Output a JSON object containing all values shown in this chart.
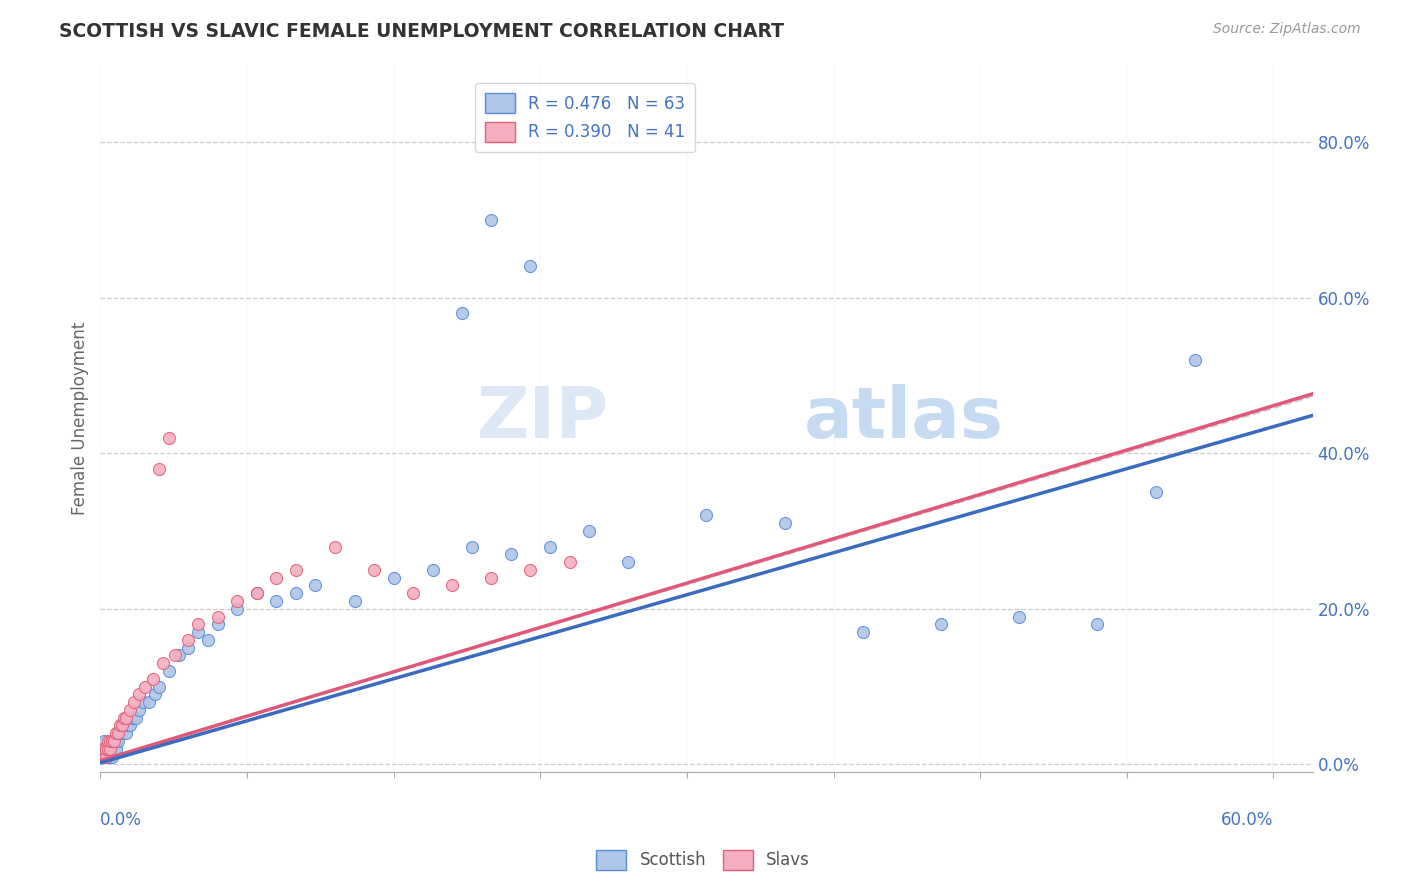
{
  "title": "SCOTTISH VS SLAVIC FEMALE UNEMPLOYMENT CORRELATION CHART",
  "source": "Source: ZipAtlas.com",
  "ylabel": "Female Unemployment",
  "legend_r1": "R = 0.476   N = 63",
  "legend_r2": "R = 0.390   N = 41",
  "scottish_color": "#aec6e8",
  "slavic_color": "#f4aec0",
  "scottish_edge_color": "#5b8dd9",
  "slavic_edge_color": "#e0607a",
  "scottish_line_color": "#3a6bbf",
  "slavic_line_color": "#e05878",
  "grey_line_color": "#cccccc",
  "background_color": "#ffffff",
  "axis_label_color": "#4472c4",
  "title_color": "#333333",
  "grid_color": "#cccccc",
  "watermark_color1": "#dce8f5",
  "watermark_color2": "#c0d8f0",
  "xlim": [
    0.0,
    0.62
  ],
  "ylim": [
    -0.01,
    0.9
  ],
  "right_yticks": [
    0.0,
    0.2,
    0.4,
    0.6,
    0.8
  ],
  "scottish_x": [
    0.001,
    0.001,
    0.001,
    0.002,
    0.002,
    0.002,
    0.003,
    0.003,
    0.004,
    0.004,
    0.005,
    0.005,
    0.006,
    0.006,
    0.007,
    0.007,
    0.008,
    0.008,
    0.009,
    0.01,
    0.011,
    0.012,
    0.013,
    0.014,
    0.015,
    0.016,
    0.017,
    0.018,
    0.02,
    0.022,
    0.025,
    0.028,
    0.03,
    0.035,
    0.04,
    0.045,
    0.05,
    0.055,
    0.06,
    0.07,
    0.08,
    0.09,
    0.1,
    0.11,
    0.13,
    0.15,
    0.17,
    0.19,
    0.21,
    0.23,
    0.25,
    0.27,
    0.31,
    0.35,
    0.39,
    0.43,
    0.47,
    0.51,
    0.54,
    0.56,
    0.2,
    0.22,
    0.185
  ],
  "scottish_y": [
    0.01,
    0.01,
    0.02,
    0.01,
    0.02,
    0.03,
    0.01,
    0.02,
    0.01,
    0.02,
    0.01,
    0.02,
    0.01,
    0.03,
    0.02,
    0.03,
    0.02,
    0.03,
    0.03,
    0.04,
    0.04,
    0.05,
    0.04,
    0.05,
    0.05,
    0.06,
    0.06,
    0.06,
    0.07,
    0.08,
    0.08,
    0.09,
    0.1,
    0.12,
    0.14,
    0.15,
    0.17,
    0.16,
    0.18,
    0.2,
    0.22,
    0.21,
    0.22,
    0.23,
    0.21,
    0.24,
    0.25,
    0.28,
    0.27,
    0.28,
    0.3,
    0.26,
    0.32,
    0.31,
    0.17,
    0.18,
    0.19,
    0.18,
    0.35,
    0.52,
    0.7,
    0.64,
    0.58
  ],
  "slavic_x": [
    0.001,
    0.001,
    0.002,
    0.002,
    0.003,
    0.003,
    0.004,
    0.004,
    0.005,
    0.005,
    0.006,
    0.007,
    0.008,
    0.009,
    0.01,
    0.011,
    0.012,
    0.013,
    0.015,
    0.017,
    0.02,
    0.023,
    0.027,
    0.032,
    0.038,
    0.045,
    0.05,
    0.06,
    0.07,
    0.08,
    0.09,
    0.1,
    0.12,
    0.14,
    0.16,
    0.18,
    0.2,
    0.22,
    0.24,
    0.03,
    0.035
  ],
  "slavic_y": [
    0.01,
    0.02,
    0.01,
    0.02,
    0.01,
    0.02,
    0.02,
    0.03,
    0.02,
    0.03,
    0.03,
    0.03,
    0.04,
    0.04,
    0.05,
    0.05,
    0.06,
    0.06,
    0.07,
    0.08,
    0.09,
    0.1,
    0.11,
    0.13,
    0.14,
    0.16,
    0.18,
    0.19,
    0.21,
    0.22,
    0.24,
    0.25,
    0.28,
    0.25,
    0.22,
    0.23,
    0.24,
    0.25,
    0.26,
    0.38,
    0.42
  ]
}
